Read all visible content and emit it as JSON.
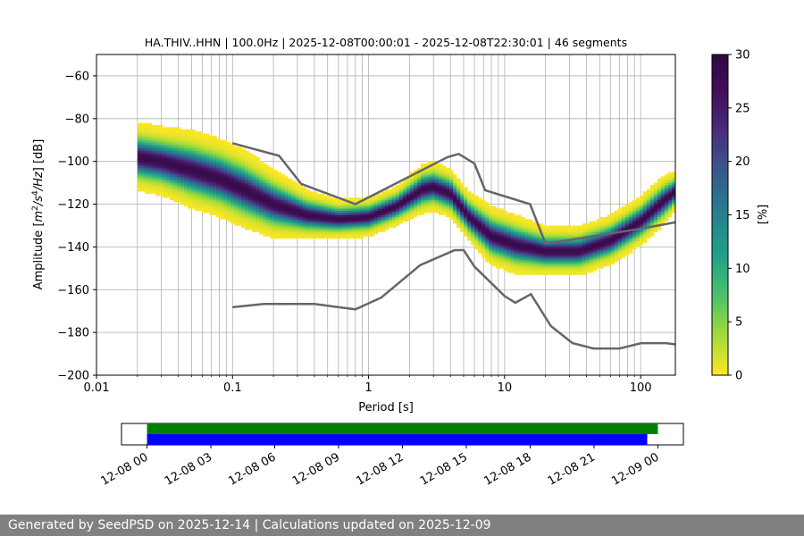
{
  "chart_data": {
    "type": "heatmap",
    "title": "HA.THIV..HHN | 100.0Hz | 2025-12-08T00:00:01 - 2025-12-08T22:30:01 | 46 segments",
    "xlabel": "Period [s]",
    "ylabel_prefix": "Amplitude [",
    "ylabel_unit_parts": [
      "m",
      "2",
      "/s",
      "4",
      "/Hz",
      "] [dB]"
    ],
    "x_scale": "log",
    "xlim": [
      0.01,
      180
    ],
    "ylim": [
      -200,
      -50
    ],
    "x_ticks": [
      0.01,
      0.1,
      1,
      10,
      100
    ],
    "x_tick_labels": [
      "0.01",
      "0.1",
      "1",
      "10",
      "100"
    ],
    "y_ticks": [
      -200,
      -180,
      -160,
      -140,
      -120,
      -100,
      -80,
      -60
    ],
    "y_tick_labels": [
      "−200",
      "−180",
      "−160",
      "−140",
      "−120",
      "−100",
      "−80",
      "−60"
    ],
    "grid": "vertical log-period lines",
    "colorbar": {
      "label": "[%]",
      "range": [
        0,
        30
      ],
      "ticks": [
        0,
        5,
        10,
        15,
        20,
        25,
        30
      ],
      "tick_labels": [
        "0",
        "5",
        "10",
        "15",
        "20",
        "25",
        "30"
      ],
      "colormap": "viridis (reversed)"
    },
    "noise_models": [
      {
        "points": [
          [
            0.1,
            -91.5
          ],
          [
            0.22,
            -97.4
          ],
          [
            0.32,
            -110.5
          ],
          [
            0.8,
            -120
          ],
          [
            3.8,
            -98
          ],
          [
            4.6,
            -96.5
          ],
          [
            6,
            -101
          ],
          [
            7.2,
            -113.5
          ],
          [
            15.4,
            -120
          ],
          [
            20,
            -138.5
          ],
          [
            100,
            -131.5
          ],
          [
            180,
            -128.5
          ]
        ]
      },
      {
        "points": [
          [
            0.1,
            -168.2
          ],
          [
            0.17,
            -166.7
          ],
          [
            0.4,
            -166.7
          ],
          [
            0.8,
            -169.2
          ],
          [
            1.24,
            -163.7
          ],
          [
            2.4,
            -148.5
          ],
          [
            4.3,
            -141.5
          ],
          [
            5,
            -141.5
          ],
          [
            6,
            -149.2
          ],
          [
            10,
            -163
          ],
          [
            12,
            -166.1
          ],
          [
            15.6,
            -162.1
          ],
          [
            21.9,
            -177
          ],
          [
            31.6,
            -185
          ],
          [
            45,
            -187.5
          ],
          [
            70,
            -187.5
          ],
          [
            101,
            -185
          ],
          [
            154,
            -185
          ],
          [
            180,
            -185.6
          ]
        ]
      }
    ],
    "psd_distribution": [
      {
        "period": 0.02,
        "center": -98,
        "spread": 7
      },
      {
        "period": 0.03,
        "center": -100,
        "spread": 7
      },
      {
        "period": 0.05,
        "center": -104,
        "spread": 8
      },
      {
        "period": 0.08,
        "center": -108,
        "spread": 8
      },
      {
        "period": 0.12,
        "center": -113,
        "spread": 8
      },
      {
        "period": 0.2,
        "center": -120,
        "spread": 7
      },
      {
        "period": 0.35,
        "center": -125,
        "spread": 5
      },
      {
        "period": 0.6,
        "center": -127,
        "spread": 4
      },
      {
        "period": 1.0,
        "center": -126,
        "spread": 4
      },
      {
        "period": 1.6,
        "center": -121,
        "spread": 4
      },
      {
        "period": 2.5,
        "center": -113,
        "spread": 5
      },
      {
        "period": 3.0,
        "center": -112,
        "spread": 5
      },
      {
        "period": 4.0,
        "center": -115,
        "spread": 5
      },
      {
        "period": 5.5,
        "center": -126,
        "spread": 5
      },
      {
        "period": 8.0,
        "center": -135,
        "spread": 6
      },
      {
        "period": 12.0,
        "center": -139,
        "spread": 6
      },
      {
        "period": 20.0,
        "center": -142,
        "spread": 5
      },
      {
        "period": 35.0,
        "center": -142,
        "spread": 5
      },
      {
        "period": 60.0,
        "center": -137,
        "spread": 5
      },
      {
        "period": 100.0,
        "center": -128,
        "spread": 5
      },
      {
        "period": 150.0,
        "center": -118,
        "spread": 5
      },
      {
        "period": 180.0,
        "center": -114,
        "spread": 4
      }
    ],
    "timeline": {
      "tick_labels": [
        "12-08 00",
        "12-08 03",
        "12-08 06",
        "12-08 09",
        "12-08 12",
        "12-08 15",
        "12-08 18",
        "12-08 21",
        "12-09 00"
      ],
      "tick_hours": [
        0,
        3,
        6,
        9,
        12,
        15,
        18,
        21,
        24
      ],
      "axis_range_hours": [
        -1.2,
        25.2
      ],
      "bars": [
        {
          "color": "#008000",
          "start_hour": 0,
          "end_hour": 24.0
        },
        {
          "color": "#0000ff",
          "start_hour": 0,
          "end_hour": 23.5
        }
      ]
    }
  },
  "footer": {
    "text": "Generated by SeedPSD on 2025-12-14 | Calculations updated on 2025-12-09"
  },
  "colors": {
    "noise_model_line": "#666666",
    "grid": "#b0b0b0",
    "footer_background": "#808080"
  }
}
